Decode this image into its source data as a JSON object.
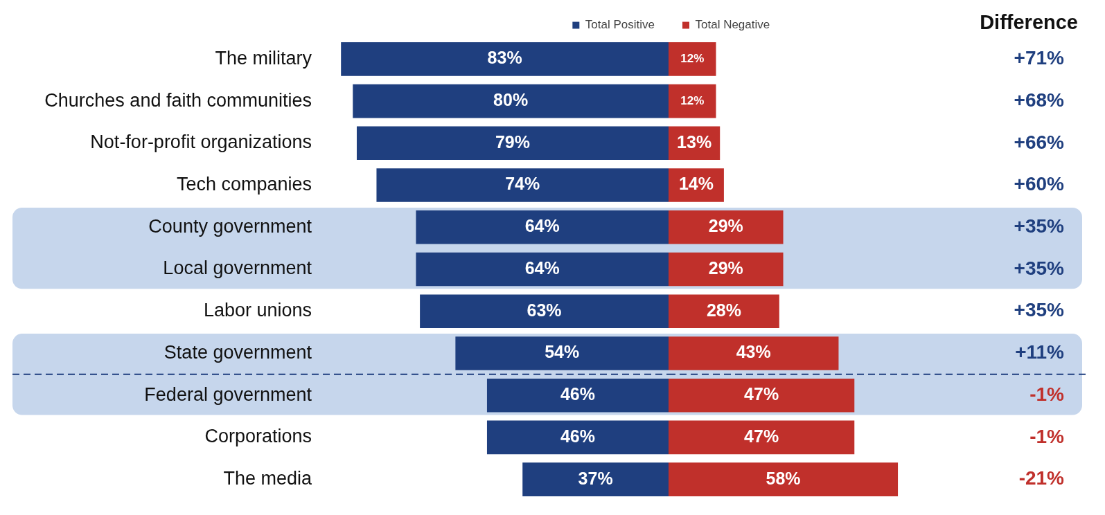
{
  "chart_data": [
    {
      "type": "bar",
      "orientation": "horizontal",
      "legend": "top",
      "categories": [
        "The military",
        "Churches and faith communities",
        "Not-for-profit organizations",
        "Tech companies",
        "County government",
        "Local government",
        "Labor unions",
        "State government",
        "Federal government",
        "Corporations",
        "The media"
      ],
      "series": [
        {
          "name": "Total Positive",
          "color": "#1f3f7f",
          "values": [
            83,
            80,
            79,
            74,
            64,
            64,
            63,
            54,
            46,
            46,
            37
          ],
          "value_labels": [
            "83%",
            "80%",
            "79%",
            "74%",
            "64%",
            "64%",
            "63%",
            "54%",
            "46%",
            "46%",
            "37%"
          ]
        }
      ],
      "bands": [
        {
          "axis": "y",
          "from": "County government",
          "to": "Local government",
          "color": "#c6d6ec"
        },
        {
          "axis": "y",
          "from": "State government",
          "to": "Federal government",
          "color": "#c6d6ec"
        }
      ],
      "ref_lines": [
        {
          "axis": "y",
          "value": "Federal government",
          "line_style": "dashed",
          "color": "#1f3f7f"
        }
      ]
    },
    {
      "type": "bar",
      "orientation": "horizontal",
      "legend": "top",
      "tick_labels": false,
      "categories": [
        "The military",
        "Churches and faith communities",
        "Not-for-profit organizations",
        "Tech companies",
        "County government",
        "Local government",
        "Labor unions",
        "State government",
        "Federal government",
        "Corporations",
        "The media"
      ],
      "series": [
        {
          "name": "Total Negative",
          "color": "#c0302b",
          "values": [
            12,
            12,
            13,
            14,
            29,
            29,
            28,
            43,
            47,
            47,
            58
          ],
          "value_labels": [
            "12%",
            "12%",
            "13%",
            "14%",
            "29%",
            "29%",
            "28%",
            "43%",
            "47%",
            "47%",
            "58%"
          ]
        }
      ],
      "bands": [
        {
          "axis": "y",
          "from": "County government",
          "to": "Local government",
          "color": "#c6d6ec"
        },
        {
          "axis": "y",
          "from": "State government",
          "to": "Federal government",
          "color": "#c6d6ec"
        }
      ],
      "ref_lines": [
        {
          "axis": "y",
          "value": "Federal government",
          "line_style": "dashed",
          "color": "#1f3f7f"
        }
      ],
      "annotations": [
        "Difference",
        "+71%",
        "+68%",
        "+66%",
        "+60%",
        "+35%",
        "+35%",
        "+35%",
        "+11%",
        "-1%",
        "-1%",
        "-21%"
      ]
    }
  ]
}
